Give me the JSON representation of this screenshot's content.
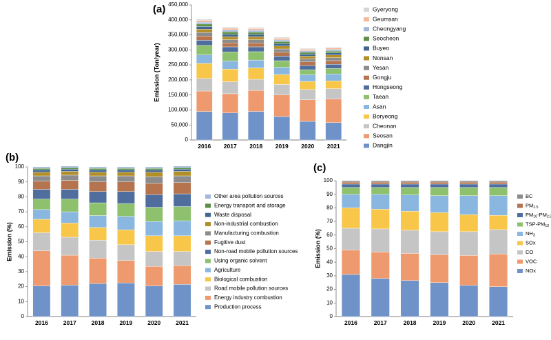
{
  "chart_data": [
    {
      "type": "bar",
      "stacked": true,
      "panel_label": "(a)",
      "ylabel": "Emission (Ton/year)",
      "categories": [
        "2016",
        "2017",
        "2018",
        "2019",
        "2020",
        "2021"
      ],
      "ylim": [
        0,
        450000
      ],
      "yticks": [
        "0",
        "50,000",
        "100,000",
        "150,000",
        "200,000",
        "250,000",
        "300,000",
        "350,000",
        "400,000",
        "450,000"
      ],
      "grid": false,
      "legend_position": "right",
      "series": [
        {
          "name": "Dangjin",
          "color": "#6f93c8",
          "values": [
            95000,
            90000,
            95000,
            78000,
            62000,
            58000
          ]
        },
        {
          "name": "Seosan",
          "color": "#ee9a6e",
          "values": [
            68000,
            64000,
            70000,
            72000,
            72000,
            78000
          ]
        },
        {
          "name": "Cheonan",
          "color": "#c5c5c5",
          "values": [
            42000,
            40000,
            37000,
            35000,
            34000,
            35000
          ]
        },
        {
          "name": "Boryeong",
          "color": "#f8c74a",
          "values": [
            50000,
            42000,
            38000,
            33000,
            27000,
            26000
          ]
        },
        {
          "name": "Asan",
          "color": "#8ab7df",
          "values": [
            28000,
            27000,
            26000,
            24000,
            22000,
            23000
          ]
        },
        {
          "name": "Taean",
          "color": "#8ec16e",
          "values": [
            32000,
            30000,
            28000,
            22000,
            17000,
            18000
          ]
        },
        {
          "name": "Hongseong",
          "color": "#4f6e9e",
          "values": [
            17000,
            17000,
            16000,
            15000,
            14000,
            14000
          ]
        },
        {
          "name": "Gongju",
          "color": "#b5734e",
          "values": [
            14000,
            13000,
            13000,
            13000,
            12000,
            12000
          ]
        },
        {
          "name": "Yesan",
          "color": "#8c8c8c",
          "values": [
            12000,
            11000,
            11000,
            11000,
            10000,
            10000
          ]
        },
        {
          "name": "Nonsan",
          "color": "#b38f2a",
          "values": [
            11000,
            10000,
            10000,
            10000,
            9000,
            9000
          ]
        },
        {
          "name": "Buyeo",
          "color": "#3f6690",
          "values": [
            9000,
            8000,
            8000,
            8000,
            7000,
            7000
          ]
        },
        {
          "name": "Seocheon",
          "color": "#5b8f45",
          "values": [
            8000,
            8000,
            7000,
            7000,
            6000,
            6000
          ]
        },
        {
          "name": "Cheongyang",
          "color": "#9fb8dc",
          "values": [
            6000,
            6000,
            6000,
            5000,
            5000,
            5000
          ]
        },
        {
          "name": "Geumsan",
          "color": "#f3b99b",
          "values": [
            6000,
            6000,
            6000,
            5000,
            5000,
            5000
          ]
        },
        {
          "name": "Gyeryong",
          "color": "#d6d6d6",
          "values": [
            4000,
            4000,
            4000,
            4000,
            3000,
            3000
          ]
        }
      ]
    },
    {
      "type": "bar",
      "stacked": true,
      "panel_label": "(b)",
      "ylabel": "Emission (%)",
      "categories": [
        "2016",
        "2017",
        "2018",
        "2019",
        "2020",
        "2021"
      ],
      "ylim": [
        0,
        100
      ],
      "yticks": [
        "0",
        "10",
        "20",
        "30",
        "40",
        "50",
        "60",
        "70",
        "80",
        "90",
        "100"
      ],
      "grid": false,
      "legend_position": "right",
      "series": [
        {
          "name": "Production process",
          "color": "#6f93c8",
          "values": [
            20.5,
            21,
            22,
            22.5,
            20.5,
            21.5
          ]
        },
        {
          "name": "Energy industry combustion",
          "color": "#ee9a6e",
          "values": [
            23.5,
            20,
            17,
            15,
            13,
            12.5
          ]
        },
        {
          "name": "Road mobile pollution sources",
          "color": "#c5c5c5",
          "values": [
            12,
            12,
            12,
            10.5,
            10,
            9.5
          ]
        },
        {
          "name": "Biological combustion",
          "color": "#f8c74a",
          "values": [
            9,
            9.5,
            8.5,
            10,
            10.5,
            10.5
          ]
        },
        {
          "name": "Agriculture",
          "color": "#8ab7df",
          "values": [
            6.5,
            7.5,
            8,
            9,
            9.5,
            10
          ]
        },
        {
          "name": "Using organic solvent",
          "color": "#8ec16e",
          "values": [
            7,
            8.5,
            8.5,
            8.5,
            9.5,
            9.5
          ]
        },
        {
          "name": "Non-road mobile pollution sources",
          "color": "#4f6e9e",
          "values": [
            6.5,
            6.5,
            7.5,
            8,
            8.5,
            8.5
          ]
        },
        {
          "name": "Fugitive dust",
          "color": "#b5734e",
          "values": [
            5.5,
            6,
            6.5,
            6.5,
            7.5,
            7.5
          ]
        },
        {
          "name": "Manufacturing combustion",
          "color": "#8c8c8c",
          "values": [
            3.5,
            3.5,
            4,
            4,
            4.5,
            4.5
          ]
        },
        {
          "name": "Non-industrial combustion",
          "color": "#b38f2a",
          "values": [
            2.5,
            2.5,
            2.5,
            2.5,
            3,
            3
          ]
        },
        {
          "name": "Waste disposal",
          "color": "#3f6690",
          "values": [
            1.5,
            1.5,
            1.5,
            1.5,
            1.5,
            1.5
          ]
        },
        {
          "name": "Energy transport and storage",
          "color": "#5b8f45",
          "values": [
            1,
            1,
            1,
            1,
            1,
            1
          ]
        },
        {
          "name": "Other area pollution sources",
          "color": "#9fb8dc",
          "values": [
            1,
            1,
            1,
            1,
            1,
            1
          ]
        }
      ]
    },
    {
      "type": "bar",
      "stacked": true,
      "panel_label": "(c)",
      "ylabel": "Emission (%)",
      "categories": [
        "2016",
        "2017",
        "2018",
        "2019",
        "2020",
        "2021"
      ],
      "ylim": [
        0,
        100
      ],
      "yticks": [
        "0",
        "10",
        "20",
        "30",
        "40",
        "50",
        "60",
        "70",
        "80",
        "90",
        "100"
      ],
      "grid": false,
      "legend_position": "right",
      "series": [
        {
          "name": "NOx",
          "label_main": "NOx",
          "label_sub": "",
          "label_mid": "",
          "label_sub2": "",
          "color": "#6f93c8",
          "values": [
            31,
            28,
            26.5,
            25,
            23,
            22
          ]
        },
        {
          "name": "VOC",
          "label_main": "VOC",
          "label_sub": "",
          "label_mid": "",
          "label_sub2": "",
          "color": "#ee9a6e",
          "values": [
            18,
            19.5,
            20,
            20.5,
            22,
            24
          ]
        },
        {
          "name": "CO",
          "label_main": "CO",
          "label_sub": "",
          "label_mid": "",
          "label_sub2": "",
          "color": "#c5c5c5",
          "values": [
            16,
            17,
            17,
            17,
            17.5,
            18
          ]
        },
        {
          "name": "SOx",
          "label_main": "SOx",
          "label_sub": "",
          "label_mid": "",
          "label_sub2": "",
          "color": "#f8c74a",
          "values": [
            15,
            14.5,
            14,
            14,
            12.5,
            10.5
          ]
        },
        {
          "name": "NH3",
          "label_main": "NH",
          "label_sub": "3",
          "label_mid": "",
          "label_sub2": "",
          "color": "#8ab7df",
          "values": [
            10,
            11,
            12,
            12.5,
            14,
            14.5
          ]
        },
        {
          "name": "TSP-PM10",
          "label_main": "TSP-PM",
          "label_sub": "10",
          "label_mid": "",
          "label_sub2": "",
          "color": "#8ec16e",
          "values": [
            5,
            5,
            5.5,
            6,
            6,
            6
          ]
        },
        {
          "name": "PM10-PM2.5",
          "label_main": "PM",
          "label_sub": "10",
          "label_mid": "-PM",
          "label_sub2": "2.5",
          "color": "#4f6e9e",
          "values": [
            2.5,
            2.5,
            2.5,
            2.5,
            2.5,
            2.5
          ]
        },
        {
          "name": "PM2.5",
          "label_main": "PM",
          "label_sub": "2.5",
          "label_mid": "",
          "label_sub2": "",
          "color": "#b5734e",
          "values": [
            1.5,
            1.5,
            1.5,
            1.5,
            1.5,
            1.5
          ]
        },
        {
          "name": "BC",
          "label_main": "BC",
          "label_sub": "",
          "label_mid": "",
          "label_sub2": "",
          "color": "#8c8c8c",
          "values": [
            1,
            1,
            1,
            1,
            1,
            1
          ]
        }
      ]
    }
  ]
}
